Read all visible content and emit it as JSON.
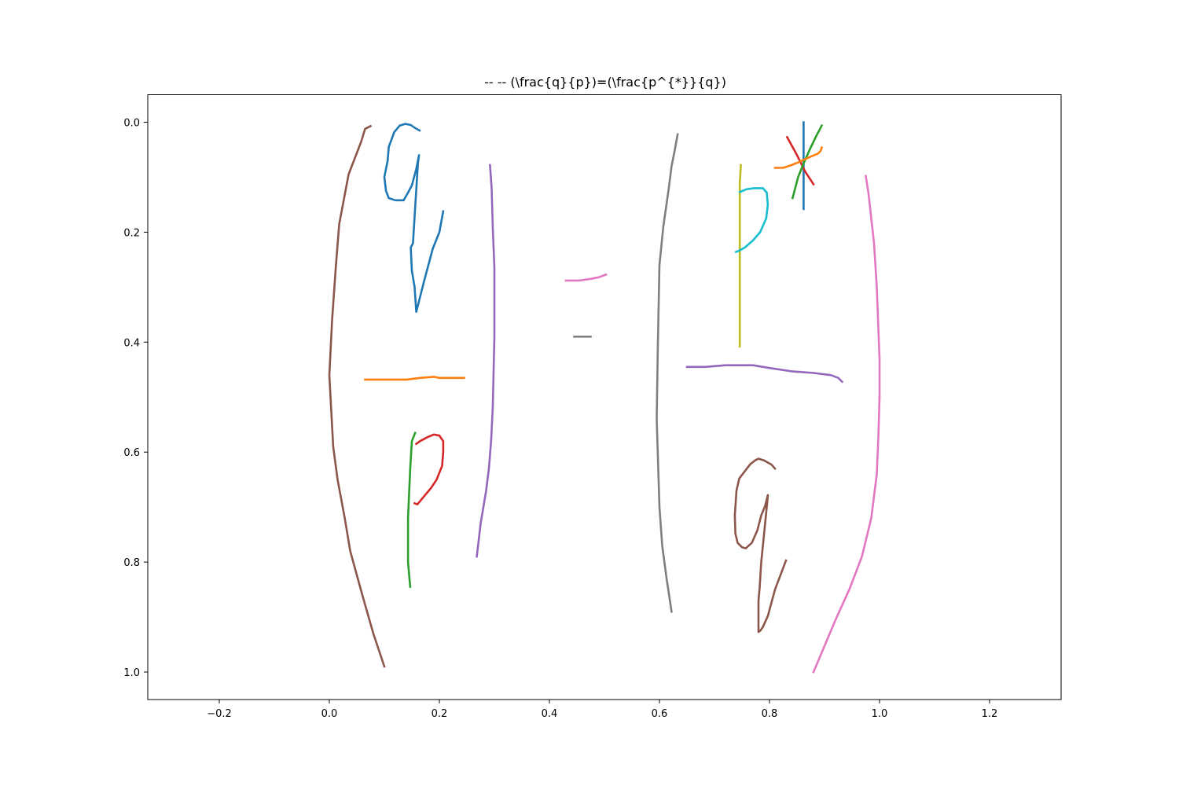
{
  "chart_data": {
    "type": "line",
    "title": "--  -- (\\frac{q}{p})=(\\frac{p^{*}}{q})",
    "xlabel": "",
    "ylabel": "",
    "xlim": [
      -0.33,
      1.33
    ],
    "ylim": [
      1.05,
      -0.05
    ],
    "y_inverted": true,
    "grid": false,
    "xticks": [
      -0.2,
      0.0,
      0.2,
      0.4,
      0.6,
      0.8,
      1.0,
      1.2
    ],
    "xtick_labels": [
      "−0.2",
      "0.0",
      "0.2",
      "0.4",
      "0.6",
      "0.8",
      "1.0",
      "1.2"
    ],
    "yticks": [
      0.0,
      0.2,
      0.4,
      0.6,
      0.8,
      1.0
    ],
    "ytick_labels": [
      "0.0",
      "0.2",
      "0.4",
      "0.6",
      "0.8",
      "1.0"
    ],
    "series": [
      {
        "color": "#8c564b",
        "x": [
          0.075,
          0.065,
          0.058,
          0.035,
          0.018,
          0.012,
          0.005,
          0.0,
          0.007,
          0.015,
          0.028,
          0.038,
          0.06,
          0.08,
          0.1
        ],
        "y": [
          0.007,
          0.012,
          0.035,
          0.095,
          0.185,
          0.26,
          0.36,
          0.46,
          0.59,
          0.65,
          0.72,
          0.78,
          0.86,
          0.93,
          0.99
        ]
      },
      {
        "color": "#1f77b4",
        "x": [
          0.164,
          0.155,
          0.148,
          0.138,
          0.128,
          0.118,
          0.108,
          0.106,
          0.1,
          0.103,
          0.108,
          0.12,
          0.135,
          0.142,
          0.15,
          0.158,
          0.163,
          0.161,
          0.156,
          0.152,
          0.148,
          0.15,
          0.155,
          0.158,
          0.172,
          0.188,
          0.2,
          0.207
        ],
        "y": [
          0.015,
          0.01,
          0.005,
          0.003,
          0.006,
          0.018,
          0.045,
          0.07,
          0.1,
          0.125,
          0.138,
          0.142,
          0.142,
          0.13,
          0.115,
          0.085,
          0.06,
          0.075,
          0.155,
          0.22,
          0.228,
          0.27,
          0.3,
          0.345,
          0.29,
          0.23,
          0.2,
          0.162
        ]
      },
      {
        "color": "#ff7f0e",
        "x": [
          0.065,
          0.14,
          0.165,
          0.19,
          0.2,
          0.245
        ],
        "y": [
          0.468,
          0.468,
          0.465,
          0.463,
          0.465,
          0.465
        ]
      },
      {
        "color": "#2ca02c",
        "x": [
          0.156,
          0.154,
          0.15,
          0.147,
          0.143,
          0.143,
          0.143,
          0.147
        ],
        "y": [
          0.565,
          0.57,
          0.58,
          0.63,
          0.72,
          0.76,
          0.8,
          0.845
        ]
      },
      {
        "color": "#d62728",
        "x": [
          0.158,
          0.165,
          0.178,
          0.19,
          0.2,
          0.207,
          0.207,
          0.205,
          0.195,
          0.185,
          0.17,
          0.16,
          0.155
        ],
        "y": [
          0.585,
          0.58,
          0.573,
          0.568,
          0.57,
          0.58,
          0.6,
          0.625,
          0.65,
          0.665,
          0.683,
          0.695,
          0.693
        ]
      },
      {
        "color": "#9467bd",
        "x": [
          0.292,
          0.295,
          0.297,
          0.3,
          0.3,
          0.297,
          0.294,
          0.29,
          0.285,
          0.275,
          0.268
        ],
        "y": [
          0.078,
          0.12,
          0.19,
          0.265,
          0.39,
          0.52,
          0.58,
          0.63,
          0.67,
          0.73,
          0.79
        ]
      },
      {
        "color": "#e377c2",
        "x": [
          0.43,
          0.455,
          0.475,
          0.49,
          0.503
        ],
        "y": [
          0.288,
          0.288,
          0.285,
          0.282,
          0.277
        ]
      },
      {
        "color": "#7f7f7f",
        "x": [
          0.445,
          0.475
        ],
        "y": [
          0.39,
          0.39
        ]
      },
      {
        "color": "#7f7f7f",
        "x": [
          0.633,
          0.628,
          0.622,
          0.617,
          0.607,
          0.6,
          0.597,
          0.595,
          0.6,
          0.605,
          0.613,
          0.622
        ],
        "y": [
          0.022,
          0.05,
          0.08,
          0.12,
          0.19,
          0.26,
          0.41,
          0.54,
          0.7,
          0.77,
          0.83,
          0.89
        ]
      },
      {
        "color": "#bcbd22",
        "x": [
          0.748,
          0.746,
          0.746,
          0.746,
          0.746
        ],
        "y": [
          0.078,
          0.11,
          0.15,
          0.3,
          0.408
        ]
      },
      {
        "color": "#17becf",
        "x": [
          0.746,
          0.758,
          0.772,
          0.788,
          0.795,
          0.797,
          0.794,
          0.783,
          0.77,
          0.755,
          0.744,
          0.739
        ],
        "y": [
          0.127,
          0.122,
          0.12,
          0.12,
          0.128,
          0.15,
          0.175,
          0.2,
          0.215,
          0.228,
          0.234,
          0.236
        ]
      },
      {
        "color": "#9467bd",
        "x": [
          0.65,
          0.683,
          0.72,
          0.77,
          0.8,
          0.84,
          0.88,
          0.912,
          0.925,
          0.932
        ],
        "y": [
          0.445,
          0.445,
          0.442,
          0.442,
          0.447,
          0.453,
          0.456,
          0.46,
          0.465,
          0.472
        ]
      },
      {
        "color": "#1f77b4",
        "x": [
          0.862,
          0.862
        ],
        "y": [
          0.0,
          0.158
        ]
      },
      {
        "color": "#d62728",
        "x": [
          0.832,
          0.85,
          0.865,
          0.88
        ],
        "y": [
          0.027,
          0.06,
          0.09,
          0.113
        ]
      },
      {
        "color": "#2ca02c",
        "x": [
          0.895,
          0.885,
          0.873,
          0.862,
          0.852,
          0.842
        ],
        "y": [
          0.006,
          0.025,
          0.05,
          0.075,
          0.1,
          0.138
        ]
      },
      {
        "color": "#ff7f0e",
        "x": [
          0.81,
          0.825,
          0.84,
          0.855,
          0.872,
          0.888,
          0.893,
          0.895
        ],
        "y": [
          0.083,
          0.083,
          0.078,
          0.072,
          0.064,
          0.057,
          0.052,
          0.046
        ]
      },
      {
        "color": "#8c564b",
        "x": [
          0.81,
          0.804,
          0.79,
          0.78,
          0.774,
          0.765,
          0.745,
          0.74,
          0.737,
          0.738,
          0.742,
          0.75,
          0.757,
          0.768,
          0.778,
          0.785,
          0.792,
          0.797,
          0.797,
          0.79,
          0.785,
          0.782,
          0.78,
          0.78,
          0.783,
          0.788,
          0.797,
          0.81,
          0.83
        ],
        "y": [
          0.63,
          0.623,
          0.615,
          0.612,
          0.615,
          0.622,
          0.648,
          0.67,
          0.715,
          0.748,
          0.765,
          0.773,
          0.775,
          0.765,
          0.742,
          0.715,
          0.698,
          0.678,
          0.68,
          0.75,
          0.8,
          0.848,
          0.87,
          0.927,
          0.925,
          0.918,
          0.898,
          0.85,
          0.797
        ]
      },
      {
        "color": "#e377c2",
        "x": [
          0.975,
          0.98,
          0.99,
          0.995,
          1.0,
          1.0,
          0.998,
          0.995,
          0.985,
          0.968,
          0.945,
          0.92,
          0.88
        ],
        "y": [
          0.098,
          0.13,
          0.22,
          0.3,
          0.43,
          0.5,
          0.57,
          0.64,
          0.72,
          0.79,
          0.85,
          0.905,
          1.0
        ]
      }
    ]
  }
}
